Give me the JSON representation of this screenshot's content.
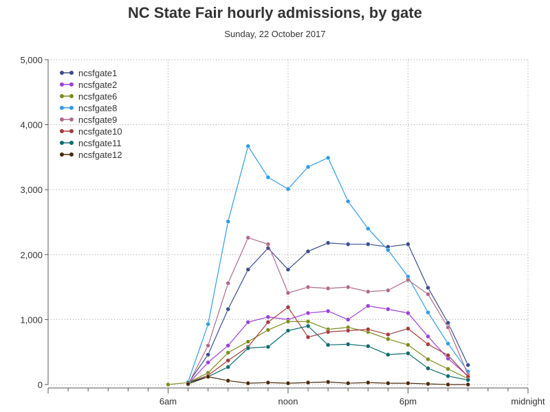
{
  "chart_data": {
    "type": "line",
    "title": "NC State Fair hourly admissions, by gate",
    "subtitle": "Sunday, 22 October 2017",
    "xlabel": "",
    "ylabel": "",
    "x_hours": [
      6,
      7,
      8,
      9,
      10,
      11,
      12,
      13,
      14,
      15,
      16,
      17,
      18,
      19,
      20,
      21,
      22
    ],
    "x_ticks": [
      {
        "hour": 6,
        "label": "6am"
      },
      {
        "hour": 12,
        "label": "noon"
      },
      {
        "hour": 18,
        "label": "6pm"
      },
      {
        "hour": 24,
        "label": "midnight"
      }
    ],
    "xlim": [
      0,
      24
    ],
    "ylim": [
      0,
      5000
    ],
    "y_ticks": [
      {
        "value": 0,
        "label": "0"
      },
      {
        "value": 1000,
        "label": "1,000"
      },
      {
        "value": 2000,
        "label": "2,000"
      },
      {
        "value": 3000,
        "label": "3,000"
      },
      {
        "value": 4000,
        "label": "4,000"
      },
      {
        "value": 5000,
        "label": "5,000"
      }
    ],
    "grid": true,
    "legend_position": "top-left",
    "series": [
      {
        "name": "ncsfgate1",
        "color": "#3b4d8c",
        "values": [
          null,
          20,
          460,
          1160,
          1770,
          2100,
          1770,
          2050,
          2180,
          2160,
          2160,
          2120,
          2160,
          1490,
          950,
          300,
          null
        ]
      },
      {
        "name": "ncsfgate2",
        "color": "#9a3fd8",
        "values": [
          null,
          10,
          340,
          600,
          960,
          1040,
          1000,
          1100,
          1130,
          1000,
          1210,
          1160,
          1100,
          740,
          400,
          130,
          null
        ]
      },
      {
        "name": "ncsfgate6",
        "color": "#7e8c1c",
        "values": [
          0,
          30,
          180,
          490,
          660,
          840,
          970,
          970,
          850,
          880,
          810,
          700,
          610,
          390,
          240,
          90,
          null
        ]
      },
      {
        "name": "ncsfgate8",
        "color": "#2f9be8",
        "values": [
          null,
          40,
          930,
          2510,
          3670,
          3190,
          3010,
          3350,
          3490,
          2820,
          2400,
          2070,
          1660,
          1110,
          630,
          200,
          null
        ]
      },
      {
        "name": "ncsfgate9",
        "color": "#b06a8a",
        "values": [
          null,
          0,
          600,
          1560,
          2260,
          2160,
          1410,
          1500,
          1480,
          1500,
          1430,
          1450,
          1610,
          1390,
          880,
          150,
          null
        ]
      },
      {
        "name": "ncsfgate10",
        "color": "#a33a3a",
        "values": [
          null,
          30,
          140,
          370,
          580,
          960,
          1190,
          730,
          810,
          830,
          850,
          770,
          860,
          620,
          450,
          120,
          null
        ]
      },
      {
        "name": "ncsfgate11",
        "color": "#0b6b6b",
        "values": [
          null,
          30,
          120,
          270,
          560,
          580,
          830,
          900,
          610,
          620,
          590,
          460,
          480,
          250,
          130,
          70,
          null
        ]
      },
      {
        "name": "ncsfgate12",
        "color": "#4a2a0a",
        "values": [
          null,
          10,
          120,
          60,
          20,
          30,
          20,
          30,
          40,
          20,
          30,
          20,
          20,
          10,
          0,
          0,
          null
        ]
      }
    ]
  }
}
